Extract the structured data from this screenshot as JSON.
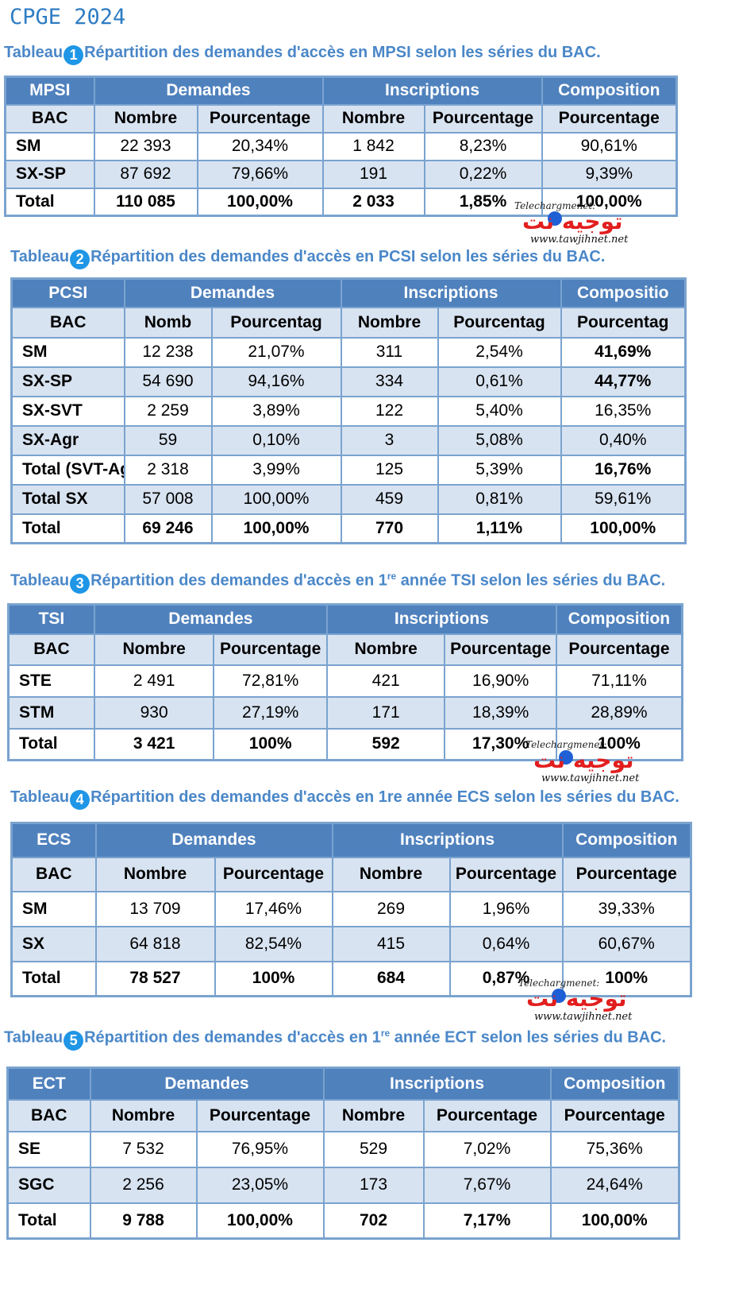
{
  "title": "CPGE 2024",
  "watermark": {
    "line1": "Telechargmenet:",
    "line2": "توجيه نت",
    "line3": "www.tawjihnet.net"
  },
  "t1": {
    "caption_pre": "Tableau",
    "num": "1",
    "caption_post": "Répartition des demandes d'accès en MPSI selon les séries du BAC.",
    "header": [
      "MPSI",
      "Demandes",
      "Inscriptions",
      "Composition"
    ],
    "sub": [
      "BAC",
      "Nombre",
      "Pourcentage",
      "Nombre",
      "Pourcentage",
      "Pourcentage"
    ],
    "rows": [
      [
        "SM",
        "22 393",
        "20,34%",
        "1 842",
        "8,23%",
        "90,61%"
      ],
      [
        "SX-SP",
        "87 692",
        "79,66%",
        "191",
        "0,22%",
        "9,39%"
      ],
      [
        "Total",
        "110 085",
        "100,00%",
        "2 033",
        "1,85%",
        "100,00%"
      ]
    ]
  },
  "t2": {
    "caption_pre": "Tableau",
    "num": "2",
    "caption_post": "Répartition des demandes d'accès en PCSI selon les séries du BAC.",
    "header": [
      "PCSI",
      "Demandes",
      "Inscriptions",
      "Compositio"
    ],
    "sub": [
      "BAC",
      "Nomb",
      "Pourcentag",
      "Nombre",
      "Pourcentag",
      "Pourcentag"
    ],
    "rows": [
      [
        "SM",
        "12 238",
        "21,07%",
        "311",
        "2,54%",
        "41,69%"
      ],
      [
        "SX-SP",
        "54 690",
        "94,16%",
        "334",
        "0,61%",
        "44,77%"
      ],
      [
        "SX-SVT",
        "2 259",
        "3,89%",
        "122",
        "5,40%",
        "16,35%"
      ],
      [
        "SX-Agr",
        "59",
        "0,10%",
        "3",
        "5,08%",
        "0,40%"
      ],
      [
        "Total",
        "2 318",
        "3,99%",
        "125",
        "5,39%",
        "16,76%"
      ],
      [
        "Total SX",
        "57 008",
        "100,00%",
        "459",
        "0,81%",
        "59,61%"
      ],
      [
        "Total",
        "69 246",
        "100,00%",
        "770",
        "1,11%",
        "100,00%"
      ]
    ],
    "row5_suffix": "(SVT-Agr)"
  },
  "t3": {
    "caption_pre": "Tableau",
    "num": "3",
    "caption_post1": "Répartition des demandes d'accès en 1",
    "caption_sup": "re",
    "caption_post2": " année TSI selon les séries du BAC.",
    "header": [
      "TSI",
      "Demandes",
      "Inscriptions",
      "Composition"
    ],
    "sub": [
      "BAC",
      "Nombre",
      "Pourcentage",
      "Nombre",
      "Pourcentage",
      "Pourcentage"
    ],
    "rows": [
      [
        "STE",
        "2 491",
        "72,81%",
        "421",
        "16,90%",
        "71,11%"
      ],
      [
        "STM",
        "930",
        "27,19%",
        "171",
        "18,39%",
        "28,89%"
      ],
      [
        "Total",
        "3 421",
        "100%",
        "592",
        "17,30%",
        "100%"
      ]
    ]
  },
  "t4": {
    "caption_pre": "Tableau",
    "num": "4",
    "caption_post": "Répartition des demandes d'accès en 1re année ECS selon les séries du BAC.",
    "header": [
      "ECS",
      "Demandes",
      "Inscriptions",
      "Composition"
    ],
    "sub": [
      "BAC",
      "Nombre",
      "Pourcentage",
      "Nombre",
      "Pourcentage",
      "Pourcentage"
    ],
    "rows": [
      [
        "SM",
        "13 709",
        "17,46%",
        "269",
        "1,96%",
        "39,33%"
      ],
      [
        "SX",
        "64 818",
        "82,54%",
        "415",
        "0,64%",
        "60,67%"
      ],
      [
        "Total",
        "78 527",
        "100%",
        "684",
        "0,87%",
        "100%"
      ]
    ]
  },
  "t5": {
    "caption_pre": "Tableau",
    "num": "5",
    "caption_post1": "Répartition des demandes d'accès en 1",
    "caption_sup": "re",
    "caption_post2": " année ECT selon les séries du BAC.",
    "header": [
      "ECT",
      "Demandes",
      "Inscriptions",
      "Composition"
    ],
    "sub": [
      "BAC",
      "Nombre",
      "Pourcentage",
      "Nombre",
      "Pourcentage",
      "Pourcentage"
    ],
    "rows": [
      [
        "SE",
        "7 532",
        "76,95%",
        "529",
        "7,02%",
        "75,36%"
      ],
      [
        "SGC",
        "2 256",
        "23,05%",
        "173",
        "7,67%",
        "24,64%"
      ],
      [
        "Total",
        "9 788",
        "100,00%",
        "702",
        "7,17%",
        "100,00%"
      ]
    ]
  }
}
